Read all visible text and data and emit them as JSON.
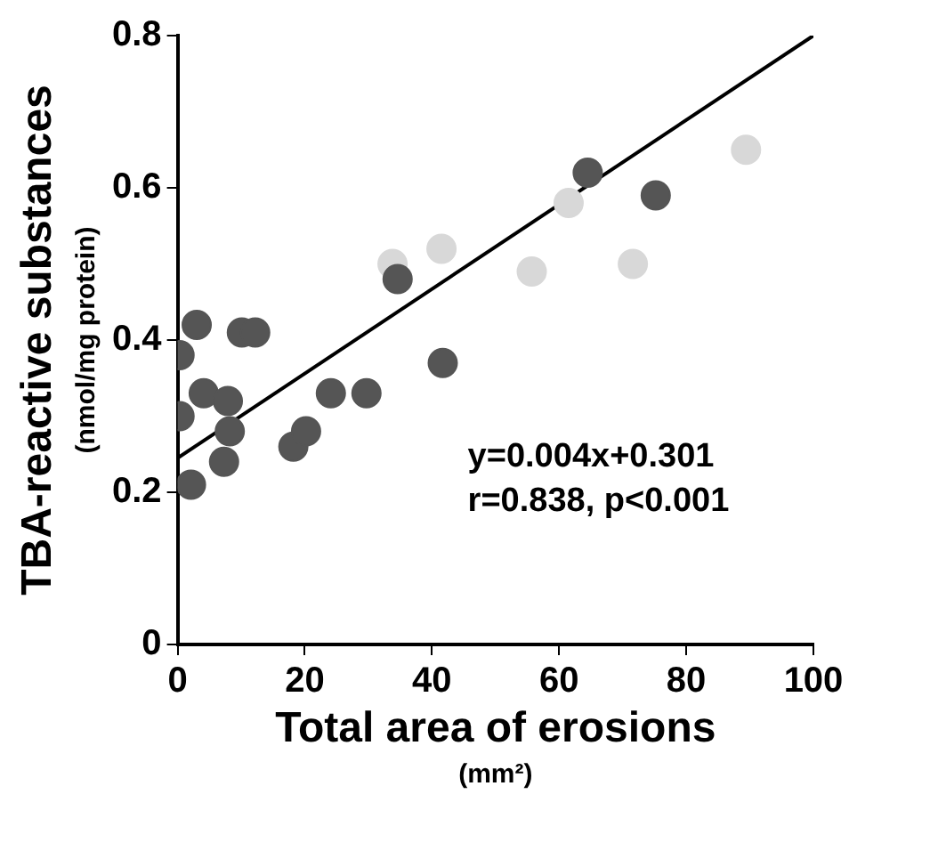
{
  "chart_data": {
    "type": "scatter",
    "xlabel": "Total area of erosions\n(mm²)",
    "ylabel": "TBA-reactive substances\n(nmol/mg protein)",
    "xlim": [
      0,
      100
    ],
    "xticks": [
      0,
      20,
      40,
      60,
      80,
      100
    ],
    "ylim": [
      0,
      0.8
    ],
    "yticks": [
      0,
      0.2,
      0.4,
      0.6,
      0.8
    ],
    "grid": false,
    "legend": false,
    "marker": "circle",
    "series": [
      {
        "color": "#555555",
        "x": [
          0.3,
          0.3,
          2.1,
          3.0,
          4.1,
          7.9,
          8.2,
          7.3,
          10.1,
          12.2,
          18.2,
          20.2,
          24.1,
          29.7,
          34.6,
          41.7,
          64.5,
          75.2
        ],
        "values": [
          0.38,
          0.3,
          0.21,
          0.42,
          0.33,
          0.32,
          0.28,
          0.24,
          0.41,
          0.41,
          0.26,
          0.28,
          0.33,
          0.33,
          0.48,
          0.37,
          0.62,
          0.59
        ]
      },
      {
        "color": "#d8d8d8",
        "x": [
          33.8,
          41.5,
          55.7,
          61.5,
          71.6,
          89.4
        ],
        "values": [
          0.5,
          0.52,
          0.49,
          0.58,
          0.5,
          0.65
        ]
      },
      {
        "type": "line",
        "color": "#000000",
        "marker": "none",
        "line_style": "solid",
        "x": [
          0,
          100
        ],
        "values": [
          0.245,
          0.8
        ]
      }
    ],
    "annotations": [
      "y=0.004x+0.301",
      "r=0.838, p<0.001"
    ]
  }
}
